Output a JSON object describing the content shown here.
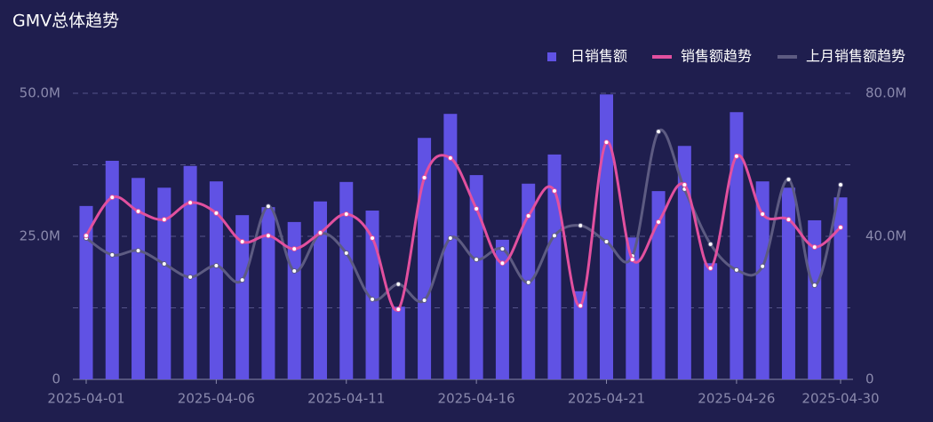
{
  "chart_data": {
    "type": "bar-line",
    "title": "GMV总体趋势",
    "categories": [
      "2025-04-01",
      null,
      null,
      null,
      null,
      "2025-04-06",
      null,
      null,
      null,
      null,
      "2025-04-11",
      null,
      null,
      null,
      null,
      "2025-04-16",
      null,
      null,
      null,
      null,
      "2025-04-21",
      null,
      null,
      null,
      null,
      "2025-04-26",
      null,
      null,
      null,
      "2025-04-30"
    ],
    "series": [
      {
        "name": "日销售额",
        "kind": "bar",
        "color": "#6052e4",
        "axis": "y",
        "values": [
          30300000,
          38200000,
          35200000,
          33500000,
          37300000,
          34600000,
          28700000,
          30100000,
          27500000,
          31100000,
          34500000,
          29500000,
          12700000,
          42200000,
          46400000,
          35700000,
          24400000,
          34200000,
          39300000,
          15400000,
          49800000,
          24800000,
          32900000,
          40800000,
          20300000,
          46700000,
          34600000,
          33500000,
          27800000,
          31800000
        ]
      },
      {
        "name": "销售额趋势",
        "kind": "line",
        "color": "#e2509f",
        "axis": "y2",
        "values": [
          40200000,
          50900000,
          47000000,
          44700000,
          49400000,
          46500000,
          38500000,
          40200000,
          36500000,
          41000000,
          46200000,
          39500000,
          19600000,
          56400000,
          61900000,
          47700000,
          32500000,
          45700000,
          52700000,
          20600000,
          66300000,
          33500000,
          44000000,
          54400000,
          31100000,
          62400000,
          46200000,
          44700000,
          37000000,
          42500000
        ]
      },
      {
        "name": "上月销售额趋势",
        "kind": "line",
        "color": "#5d5b82",
        "axis": "y2",
        "values": [
          39500000,
          34800000,
          36000000,
          32300000,
          28600000,
          31800000,
          27800000,
          48400000,
          30300000,
          40700000,
          35300000,
          22400000,
          26600000,
          22100000,
          39500000,
          33500000,
          36500000,
          27100000,
          40200000,
          43000000,
          38500000,
          34500000,
          69300000,
          53200000,
          37800000,
          30600000,
          31600000,
          55900000,
          26300000,
          54400000
        ]
      }
    ],
    "ylim": [
      0,
      50000000
    ],
    "yticks": [
      0,
      {
        "value": 25000000,
        "label": "25.0M"
      },
      {
        "value": 50000000,
        "label": "50.0M"
      }
    ],
    "y2lim": [
      0,
      80000000
    ],
    "y2ticks": [
      0,
      {
        "value": 40000000,
        "label": "40.0M"
      },
      {
        "value": 80000000,
        "label": "80.0M"
      }
    ],
    "ygrid": [
      0,
      12500000,
      25000000,
      37500000,
      50000000
    ],
    "legend": "top-right",
    "smooth": true
  }
}
